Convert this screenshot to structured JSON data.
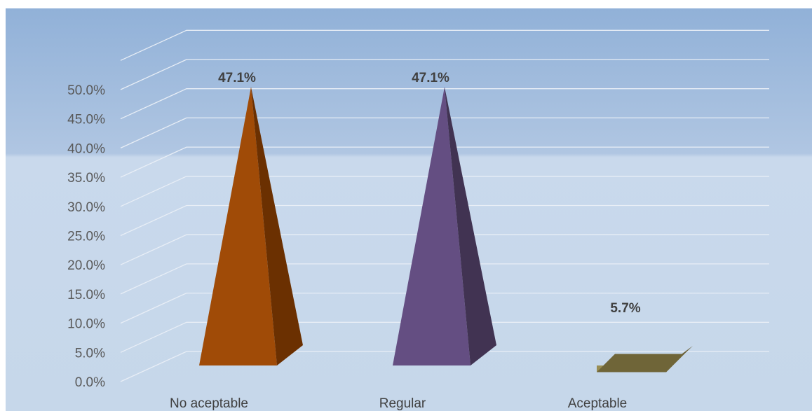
{
  "chart_data": {
    "type": "bar",
    "shape": "3d-pyramid (last category rendered as truncated 3d block)",
    "categories": [
      "No aceptable",
      "Regular",
      "Aceptable"
    ],
    "values": [
      47.1,
      47.1,
      5.7
    ],
    "data_labels": [
      "47.1%",
      "47.1%",
      "5.7%"
    ],
    "ylim": [
      0,
      50
    ],
    "yticks": [
      "0.0%",
      "5.0%",
      "10.0%",
      "15.0%",
      "20.0%",
      "25.0%",
      "30.0%",
      "35.0%",
      "40.0%",
      "45.0%",
      "50.0%"
    ],
    "grid": true,
    "legend": "none",
    "colors": {
      "bars": [
        "#A04B07",
        "#644E82",
        "#988D53"
      ],
      "bar_sides": [
        "#6B3001",
        "#413352",
        "#6B613A"
      ],
      "background_top": "#95B3D7",
      "background_bottom": "#C8D8EB",
      "gridline": "#E8EEF6",
      "tick_text": "#595959"
    }
  }
}
